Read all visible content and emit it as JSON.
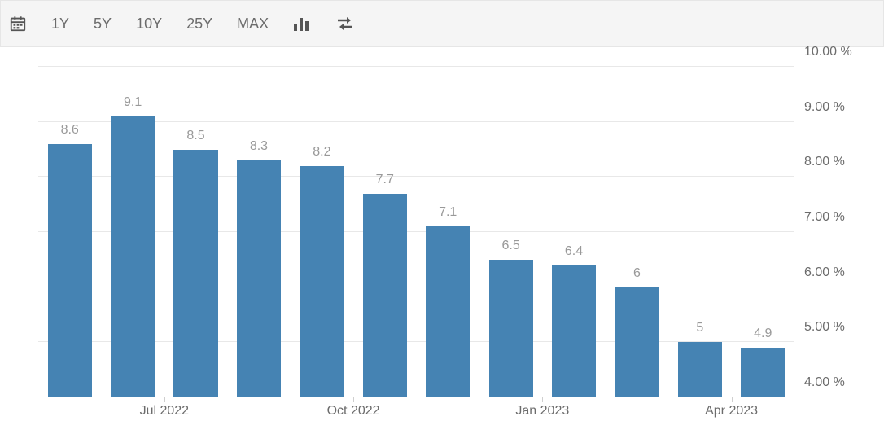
{
  "toolbar": {
    "ranges": [
      "1Y",
      "5Y",
      "10Y",
      "25Y",
      "MAX"
    ]
  },
  "chart": {
    "type": "bar",
    "values": [
      8.6,
      9.1,
      8.5,
      8.3,
      8.2,
      7.7,
      7.1,
      6.5,
      6.4,
      6,
      5,
      4.9
    ],
    "bar_color": "#4583b3",
    "value_label_color": "#999999",
    "bar_width_ratio": 0.7,
    "y_axis": {
      "min": 4,
      "max": 10,
      "ticks": [
        4,
        5,
        6,
        7,
        8,
        9,
        10
      ],
      "suffix": " %",
      "decimals": 2,
      "label_color": "#6c6c6c",
      "label_fontsize": 16
    },
    "x_axis": {
      "ticks": [
        {
          "index": 2,
          "label": "Jul 2022"
        },
        {
          "index": 5,
          "label": "Oct 2022"
        },
        {
          "index": 8,
          "label": "Jan 2023"
        },
        {
          "index": 11,
          "label": "Apr 2023"
        }
      ],
      "label_color": "#6c6c6c",
      "label_fontsize": 16
    },
    "gridline_color": "#e8e8e8",
    "background_color": "#ffffff"
  }
}
